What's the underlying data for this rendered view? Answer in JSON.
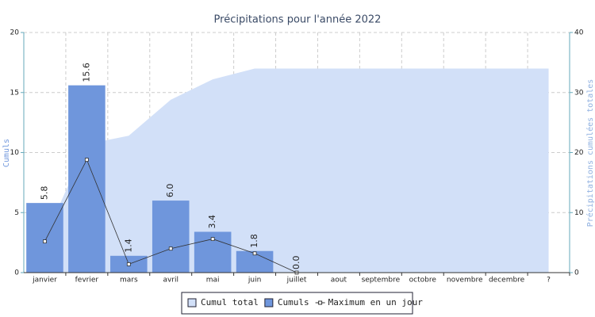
{
  "chart_data": {
    "type": "bar",
    "title": "Précipitations pour l'année 2022",
    "y_label": "Cumuls",
    "y2_label": "Précipitations cumulées totales",
    "categories": [
      "janvier",
      "fevrier",
      "mars",
      "avril",
      "mai",
      "juin",
      "juillet",
      "aout",
      "septembre",
      "octobre",
      "novembre",
      "decembre",
      "?"
    ],
    "series": [
      {
        "name": "Cumul total",
        "type": "area",
        "axis": "y2",
        "color": "#d2e0f8",
        "values": [
          5.8,
          21.4,
          22.8,
          28.8,
          32.2,
          34.0,
          34.0,
          34.0,
          34.0,
          34.0,
          34.0,
          34.0,
          34.0
        ]
      },
      {
        "name": "Cumuls",
        "type": "bar",
        "color": "#6f96dc",
        "values": [
          5.8,
          15.6,
          1.4,
          6.0,
          3.4,
          1.8,
          0.0,
          null,
          null,
          null,
          null,
          null,
          null
        ],
        "value_labels": [
          "5.8",
          "15.6",
          "1.4",
          "6.0",
          "3.4",
          "1.8",
          "0.0",
          null,
          null,
          null,
          null,
          null,
          null
        ]
      },
      {
        "name": "Maximum en un jour",
        "type": "line",
        "color": "#333333",
        "values": [
          2.6,
          9.4,
          0.7,
          2.0,
          2.8,
          1.6,
          0.0,
          null,
          null,
          null,
          null,
          null,
          null
        ]
      }
    ],
    "ylim": [
      0,
      20
    ],
    "yticks": [
      0,
      5,
      10,
      15,
      20
    ],
    "y2lim": [
      0,
      40
    ],
    "y2ticks": [
      0,
      10,
      20,
      30,
      40
    ],
    "grid": true,
    "legend": "bottom"
  }
}
